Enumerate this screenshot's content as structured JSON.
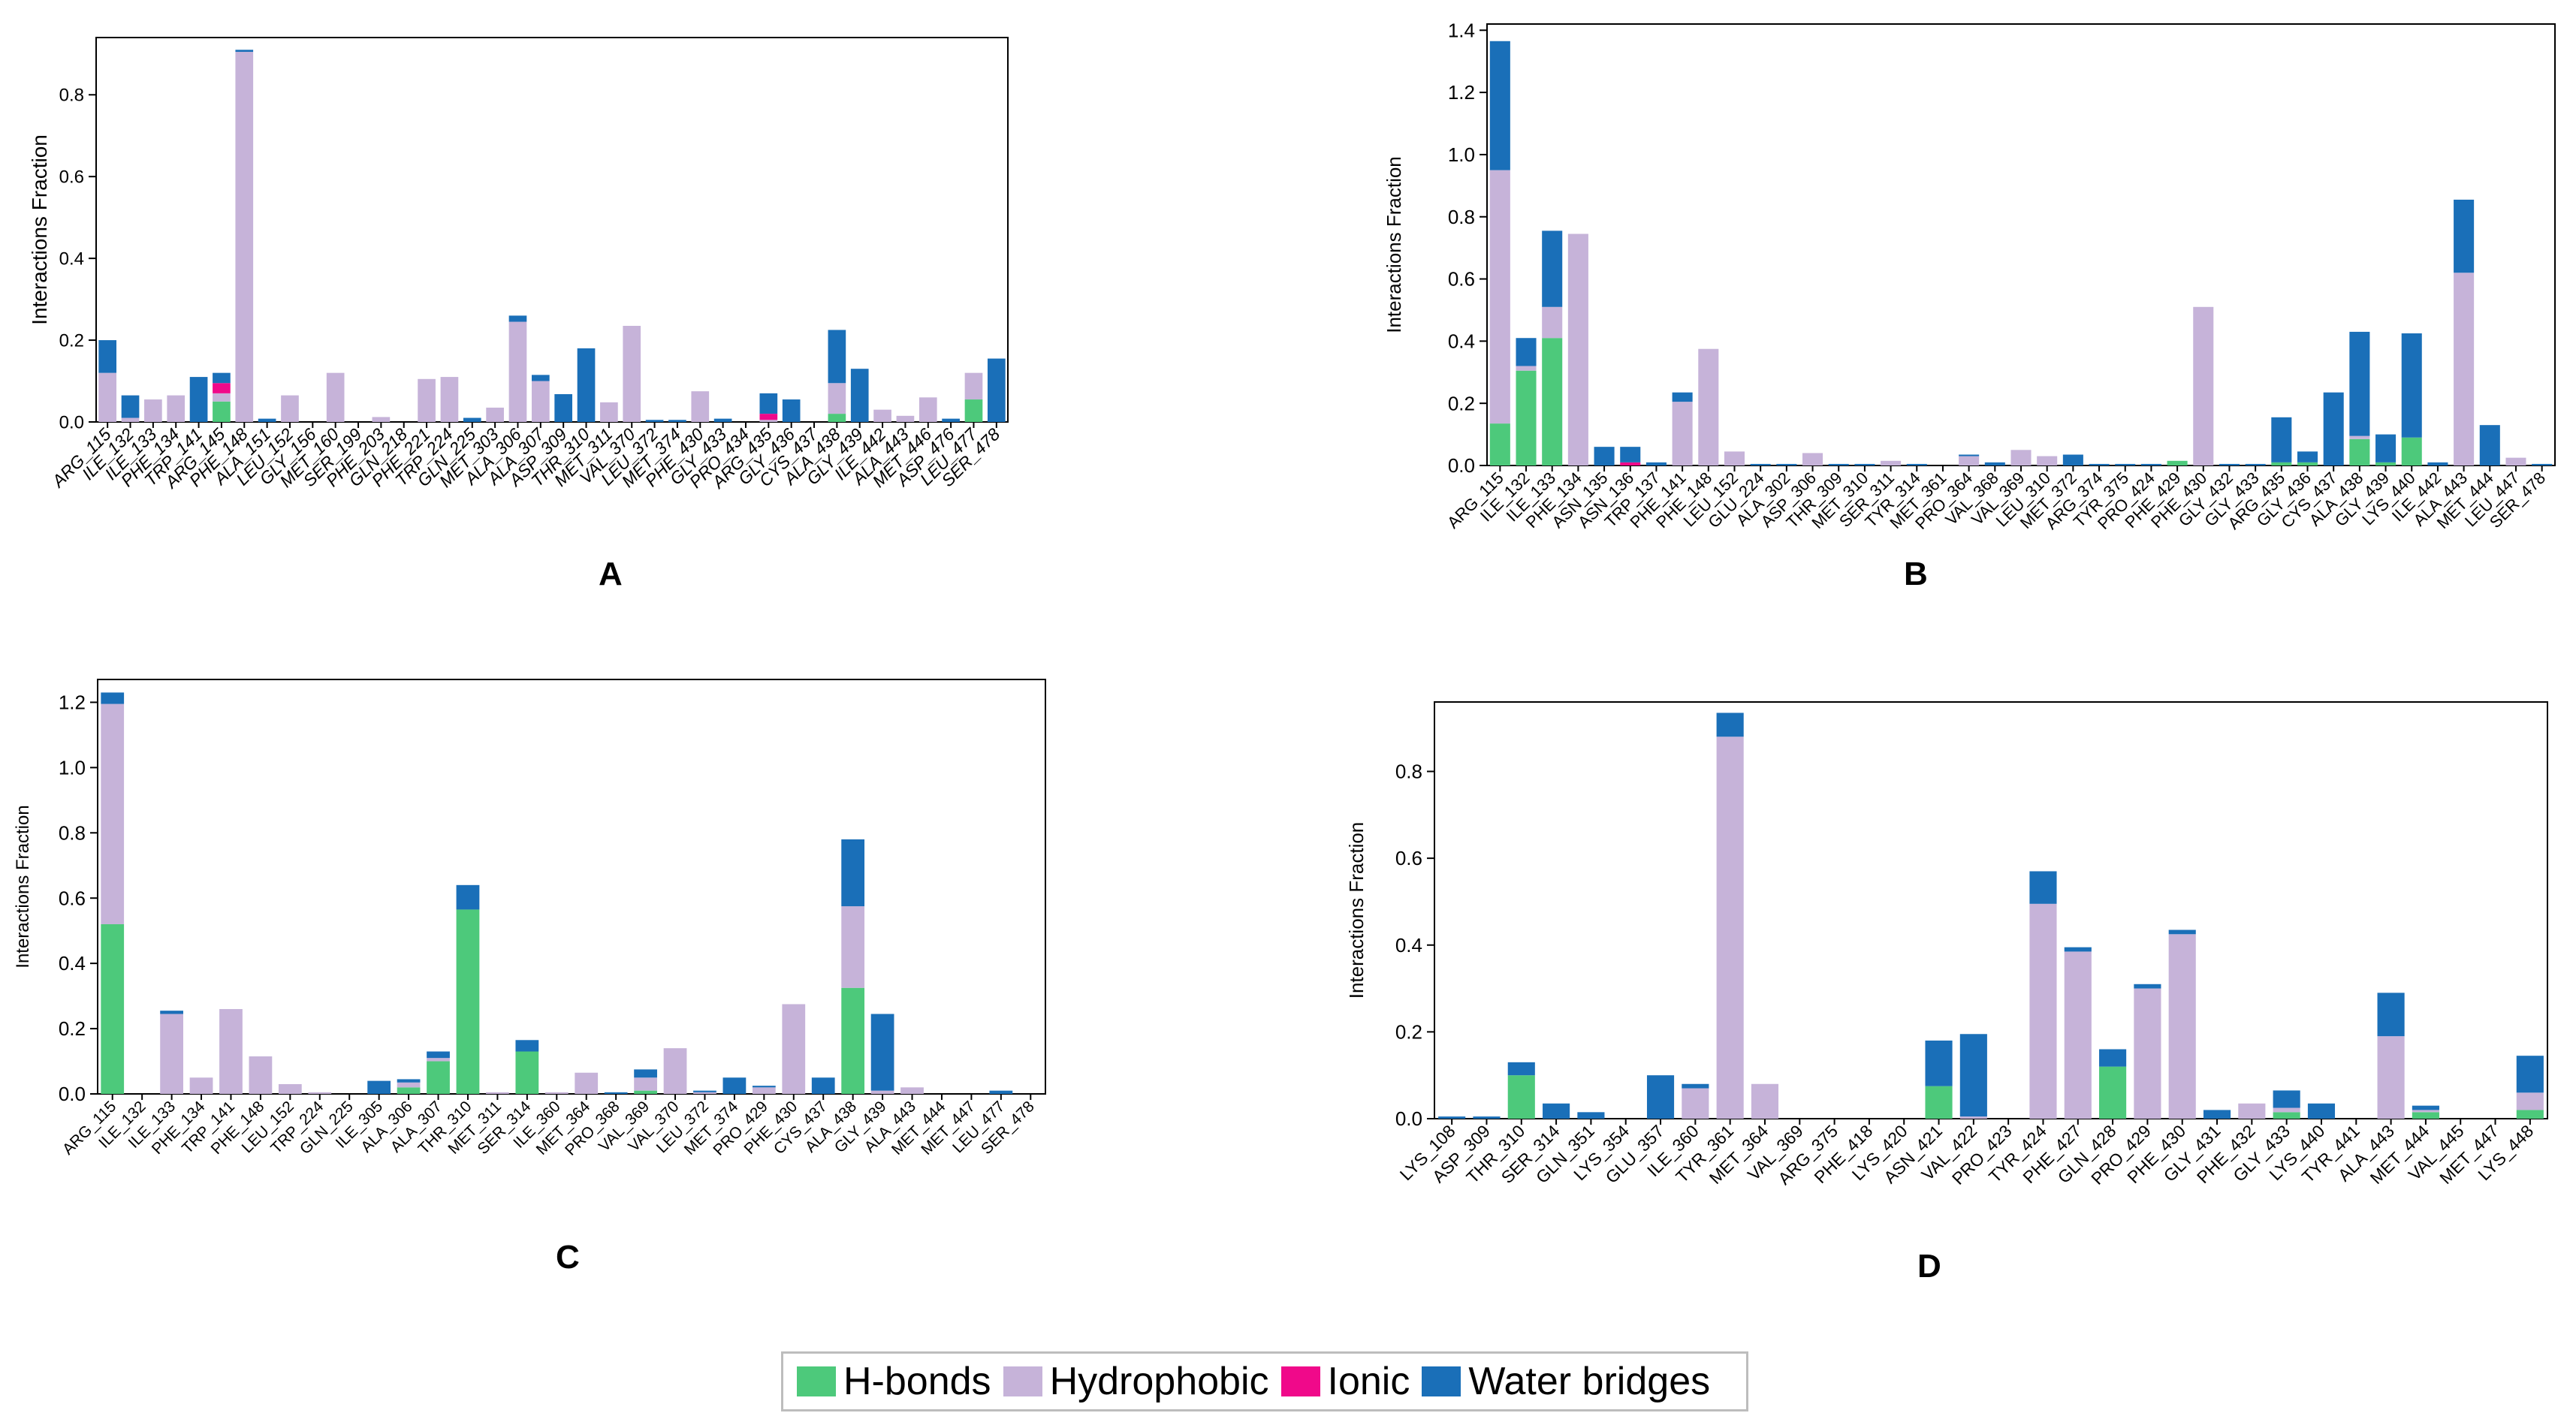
{
  "colors": {
    "hbond": "#4dc97b",
    "hydrophobic": "#c6b3d9",
    "ionic": "#f0098a",
    "water": "#1a6fb8"
  },
  "series_order": [
    "hbond",
    "hydrophobic",
    "ionic",
    "water"
  ],
  "legend": [
    {
      "key": "hbond",
      "label": "H-bonds"
    },
    {
      "key": "hydrophobic",
      "label": "Hydrophobic"
    },
    {
      "key": "ionic",
      "label": "Ionic"
    },
    {
      "key": "water",
      "label": "Water bridges"
    }
  ],
  "chart_data": [
    {
      "panel": "A",
      "type": "bar",
      "stacked": true,
      "ylabel": "Interactions Fraction",
      "xlabel": "",
      "ylim": [
        0,
        0.94
      ],
      "yticks": [
        0.0,
        0.2,
        0.4,
        0.6,
        0.8
      ],
      "categories": [
        "ARG_115",
        "ILE_132",
        "ILE_133",
        "PHE_134",
        "TRP_141",
        "ARG_145",
        "PHE_148",
        "ALA_151",
        "LEU_152",
        "GLY_156",
        "MET_160",
        "SER_199",
        "PHE_203",
        "GLN_218",
        "PHE_221",
        "TRP_224",
        "GLN_225",
        "MET_303",
        "ALA_306",
        "ALA_307",
        "ASP_309",
        "THR_310",
        "MET_311",
        "VAL_370",
        "LEU_372",
        "MET_374",
        "PHE_430",
        "GLY_433",
        "PRO_434",
        "ARG_435",
        "GLY_436",
        "CYS_437",
        "ALA_438",
        "GLY_439",
        "ILE_442",
        "ALA_443",
        "MET_446",
        "ASP_476",
        "LEU_477",
        "SER_478"
      ],
      "series": [
        {
          "name": "H-bonds",
          "key": "hbond",
          "values": [
            0,
            0,
            0,
            0,
            0,
            0.05,
            0,
            0,
            0,
            0,
            0,
            0,
            0,
            0,
            0,
            0,
            0,
            0,
            0,
            0,
            0,
            0,
            0,
            0,
            0,
            0,
            0,
            0,
            0,
            0,
            0,
            0,
            0.02,
            0,
            0,
            0,
            0,
            0,
            0.055,
            0
          ]
        },
        {
          "name": "Hydrophobic",
          "key": "hydrophobic",
          "values": [
            0.12,
            0.01,
            0.055,
            0.065,
            0,
            0.02,
            0.905,
            0,
            0.065,
            0,
            0.12,
            0,
            0.012,
            0,
            0.105,
            0.11,
            0,
            0.035,
            0.245,
            0.1,
            0,
            0,
            0.048,
            0.235,
            0,
            0,
            0.075,
            0,
            0,
            0.005,
            0,
            0,
            0.075,
            0,
            0.03,
            0.015,
            0.06,
            0,
            0.065,
            0
          ]
        },
        {
          "name": "Ionic",
          "key": "ionic",
          "values": [
            0,
            0,
            0,
            0,
            0,
            0.025,
            0,
            0,
            0,
            0,
            0,
            0,
            0,
            0,
            0,
            0,
            0,
            0,
            0,
            0,
            0,
            0,
            0,
            0,
            0,
            0,
            0,
            0,
            0,
            0.015,
            0,
            0,
            0,
            0,
            0,
            0,
            0,
            0,
            0,
            0
          ]
        },
        {
          "name": "Water bridges",
          "key": "water",
          "values": [
            0.08,
            0.055,
            0,
            0,
            0.11,
            0.025,
            0.005,
            0.008,
            0,
            0,
            0,
            0,
            0,
            0,
            0,
            0,
            0.01,
            0,
            0.015,
            0.015,
            0.068,
            0.18,
            0,
            0,
            0.005,
            0.005,
            0,
            0.008,
            0,
            0.05,
            0.055,
            0,
            0.13,
            0.13,
            0,
            0,
            0,
            0.008,
            0,
            0.155
          ]
        }
      ]
    },
    {
      "panel": "B",
      "type": "bar",
      "stacked": true,
      "ylabel": "Interactions Fraction",
      "xlabel": "",
      "ylim": [
        0,
        1.42
      ],
      "yticks": [
        0.0,
        0.2,
        0.4,
        0.6,
        0.8,
        1.0,
        1.2,
        1.4
      ],
      "categories": [
        "ARG_115",
        "ILE_132",
        "ILE_133",
        "PHE_134",
        "ASN_135",
        "ASN_136",
        "TRP_137",
        "PHE_141",
        "PHE_148",
        "LEU_152",
        "GLU_224",
        "ALA_302",
        "ASP_306",
        "THR_309",
        "MET_310",
        "SER_311",
        "TYR_314",
        "MET_361",
        "PRO_364",
        "VAL_368",
        "VAL_369",
        "LEU_310",
        "MET_372",
        "ARG_374",
        "TYR_375",
        "PRO_424",
        "PHE_429",
        "PHE_430",
        "GLY_432",
        "GLY_433",
        "ARG_435",
        "GLY_436",
        "CYS_437",
        "ALA_438",
        "GLY_439",
        "LYS_440",
        "ILE_442",
        "ALA_443",
        "MET_444",
        "LEU_447",
        "SER_478"
      ],
      "series": [
        {
          "name": "H-bonds",
          "key": "hbond",
          "values": [
            0.135,
            0.305,
            0.41,
            0,
            0,
            0,
            0,
            0,
            0,
            0,
            0,
            0,
            0,
            0,
            0,
            0,
            0,
            0,
            0,
            0,
            0,
            0,
            0,
            0,
            0,
            0,
            0.015,
            0,
            0,
            0,
            0.01,
            0.01,
            0,
            0.085,
            0.01,
            0.09,
            0,
            0,
            0,
            0,
            0
          ]
        },
        {
          "name": "Hydrophobic",
          "key": "hydrophobic",
          "values": [
            0.815,
            0.015,
            0.1,
            0.745,
            0,
            0,
            0,
            0.205,
            0.375,
            0.045,
            0,
            0,
            0.04,
            0,
            0,
            0.015,
            0,
            0,
            0.03,
            0,
            0.05,
            0.03,
            0,
            0,
            0,
            0,
            0,
            0.51,
            0,
            0,
            0,
            0,
            0,
            0.01,
            0,
            0,
            0,
            0.62,
            0,
            0.025,
            0
          ]
        },
        {
          "name": "Ionic",
          "key": "ionic",
          "values": [
            0,
            0,
            0,
            0,
            0,
            0.01,
            0,
            0,
            0,
            0,
            0,
            0,
            0,
            0,
            0,
            0,
            0,
            0,
            0,
            0,
            0,
            0,
            0,
            0,
            0,
            0,
            0,
            0,
            0,
            0,
            0,
            0,
            0,
            0,
            0,
            0,
            0,
            0,
            0,
            0,
            0
          ]
        },
        {
          "name": "Water bridges",
          "key": "water",
          "values": [
            0.415,
            0.09,
            0.245,
            0,
            0.06,
            0.05,
            0.01,
            0.03,
            0,
            0,
            0.005,
            0.005,
            0,
            0.005,
            0.005,
            0,
            0.005,
            0,
            0.005,
            0.01,
            0,
            0,
            0.035,
            0.005,
            0.005,
            0.005,
            0,
            0,
            0.005,
            0.005,
            0.145,
            0.035,
            0.235,
            0.335,
            0.09,
            0.335,
            0.01,
            0.235,
            0.13,
            0,
            0.005
          ]
        }
      ]
    },
    {
      "panel": "C",
      "type": "bar",
      "stacked": true,
      "ylabel": "Interactions Fraction",
      "xlabel": "",
      "ylim": [
        0,
        1.27
      ],
      "yticks": [
        0.0,
        0.2,
        0.4,
        0.6,
        0.8,
        1.0,
        1.2
      ],
      "categories": [
        "ARG_115",
        "ILE_132",
        "ILE_133",
        "PHE_134",
        "TRP_141",
        "PHE_148",
        "LEU_152",
        "TRP_224",
        "GLN_225",
        "ILE_305",
        "ALA_306",
        "ALA_307",
        "THR_310",
        "MET_311",
        "SER_314",
        "ILE_360",
        "MET_364",
        "PRO_368",
        "VAL_369",
        "VAL_370",
        "LEU_372",
        "MET_374",
        "PRO_429",
        "PHE_430",
        "CYS_437",
        "ALA_438",
        "GLY_439",
        "ALA_443",
        "MET_444",
        "MET_447",
        "LEU_477",
        "SER_478"
      ],
      "series": [
        {
          "name": "H-bonds",
          "key": "hbond",
          "values": [
            0.52,
            0,
            0,
            0,
            0,
            0,
            0,
            0,
            0,
            0,
            0.02,
            0.1,
            0.565,
            0,
            0.13,
            0,
            0,
            0,
            0.01,
            0,
            0,
            0,
            0,
            0,
            0,
            0.325,
            0,
            0,
            0,
            0,
            0,
            0
          ]
        },
        {
          "name": "Hydrophobic",
          "key": "hydrophobic",
          "values": [
            0.675,
            0,
            0.245,
            0.05,
            0.26,
            0.115,
            0.03,
            0.005,
            0,
            0,
            0.015,
            0.01,
            0,
            0.005,
            0,
            0.005,
            0.065,
            0,
            0.04,
            0.14,
            0.005,
            0,
            0.02,
            0.275,
            0,
            0.25,
            0.01,
            0.02,
            0,
            0,
            0,
            0
          ]
        },
        {
          "name": "Ionic",
          "key": "ionic",
          "values": [
            0,
            0,
            0,
            0,
            0,
            0,
            0,
            0,
            0,
            0,
            0,
            0,
            0,
            0,
            0,
            0,
            0,
            0,
            0,
            0,
            0,
            0,
            0,
            0,
            0,
            0,
            0,
            0,
            0,
            0,
            0,
            0
          ]
        },
        {
          "name": "Water bridges",
          "key": "water",
          "values": [
            0.035,
            0,
            0.01,
            0,
            0,
            0,
            0,
            0,
            0,
            0.04,
            0.01,
            0.02,
            0.075,
            0,
            0.035,
            0,
            0,
            0.005,
            0.025,
            0,
            0.005,
            0.05,
            0.005,
            0,
            0.05,
            0.205,
            0.235,
            0,
            0,
            0,
            0.01,
            0
          ]
        }
      ]
    },
    {
      "panel": "D",
      "type": "bar",
      "stacked": true,
      "ylabel": "Interactions Fraction",
      "xlabel": "",
      "ylim": [
        0,
        0.96
      ],
      "yticks": [
        0.0,
        0.2,
        0.4,
        0.6,
        0.8
      ],
      "categories": [
        "LYS_108",
        "ASP_309",
        "THR_310",
        "SER_314",
        "GLN_351",
        "LYS_354",
        "GLU_357",
        "ILE_360",
        "TYR_361",
        "MET_364",
        "VAL_369",
        "ARG_375",
        "PHE_418",
        "LYS_420",
        "ASN_421",
        "VAL_422",
        "PRO_423",
        "TYR_424",
        "PHE_427",
        "GLN_428",
        "PRO_429",
        "PHE_430",
        "GLY_431",
        "PHE_432",
        "GLY_433",
        "LYS_440",
        "TYR_441",
        "ALA_443",
        "MET_444",
        "VAL_445",
        "MET_447",
        "LYS_448"
      ],
      "series": [
        {
          "name": "H-bonds",
          "key": "hbond",
          "values": [
            0,
            0,
            0.1,
            0,
            0,
            0,
            0,
            0,
            0,
            0,
            0,
            0,
            0,
            0,
            0.075,
            0,
            0,
            0,
            0,
            0.12,
            0,
            0,
            0,
            0,
            0.015,
            0,
            0,
            0,
            0.015,
            0,
            0,
            0.02
          ]
        },
        {
          "name": "Hydrophobic",
          "key": "hydrophobic",
          "values": [
            0,
            0,
            0,
            0,
            0,
            0,
            0,
            0.07,
            0.88,
            0.08,
            0,
            0,
            0,
            0,
            0,
            0.005,
            0,
            0.495,
            0.385,
            0,
            0.3,
            0.425,
            0,
            0.035,
            0.01,
            0,
            0,
            0.19,
            0.005,
            0,
            0,
            0.04
          ]
        },
        {
          "name": "Ionic",
          "key": "ionic",
          "values": [
            0,
            0,
            0,
            0,
            0,
            0,
            0,
            0,
            0,
            0,
            0,
            0,
            0,
            0,
            0,
            0,
            0,
            0,
            0,
            0,
            0,
            0,
            0,
            0,
            0,
            0,
            0,
            0,
            0,
            0,
            0,
            0
          ]
        },
        {
          "name": "Water bridges",
          "key": "water",
          "values": [
            0.005,
            0.005,
            0.03,
            0.035,
            0.015,
            0,
            0.1,
            0.01,
            0.055,
            0,
            0,
            0,
            0,
            0,
            0.105,
            0.19,
            0,
            0.075,
            0.01,
            0.04,
            0.01,
            0.01,
            0.02,
            0,
            0.04,
            0.035,
            0,
            0.1,
            0.01,
            0,
            0,
            0.085
          ]
        }
      ]
    }
  ]
}
